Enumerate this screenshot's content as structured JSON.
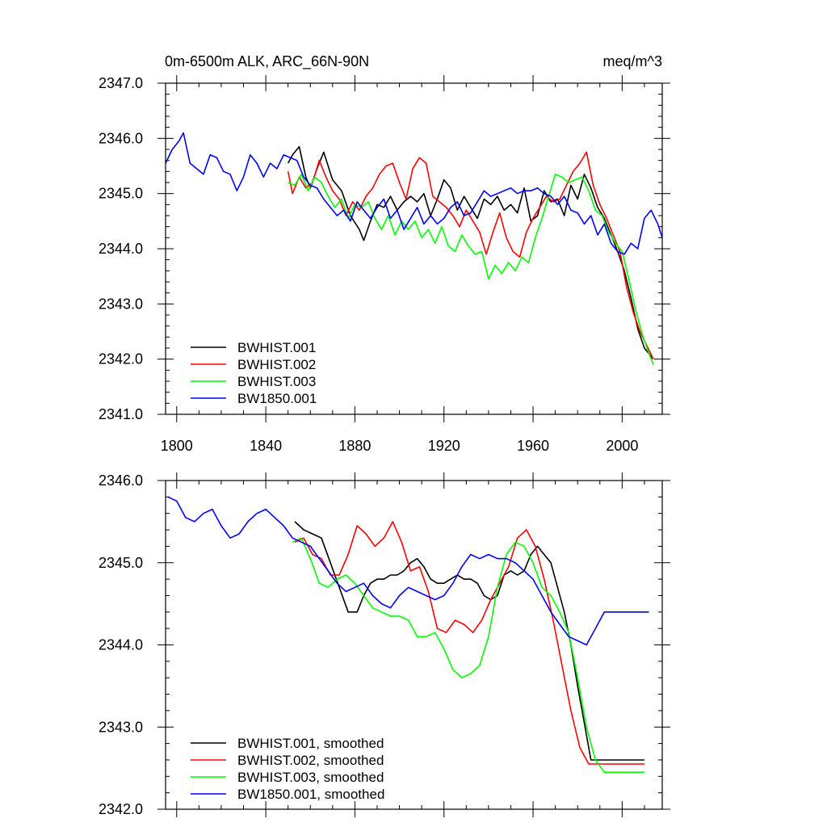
{
  "chart_data": [
    {
      "type": "line",
      "title": "0m-6500m ALK, ARC_66N-90N",
      "units": "meq/m^3",
      "xlim": [
        1795,
        2018
      ],
      "ylim": [
        2341.0,
        2347.0
      ],
      "x_ticks": [
        1800,
        1840,
        1880,
        1920,
        1960,
        2000
      ],
      "y_ticks": [
        "2341.0",
        "2342.0",
        "2343.0",
        "2344.0",
        "2345.0",
        "2346.0",
        "2347.0"
      ],
      "y_tick_values": [
        2341,
        2342,
        2343,
        2344,
        2345,
        2346,
        2347
      ],
      "legend_position": "bottom-left",
      "series": [
        {
          "name": "BWHIST.001",
          "color": "#000000",
          "x": [
            1850,
            1852,
            1855,
            1858,
            1860,
            1863,
            1866,
            1870,
            1874,
            1878,
            1882,
            1884,
            1887,
            1890,
            1893,
            1896,
            1899,
            1902,
            1905,
            1908,
            1911,
            1914,
            1917,
            1920,
            1923,
            1926,
            1929,
            1932,
            1935,
            1938,
            1941,
            1944,
            1947,
            1950,
            1953,
            1956,
            1959,
            1962,
            1965,
            1968,
            1971,
            1974,
            1977,
            1980,
            1983,
            1986,
            1989,
            1992,
            1995,
            1998,
            2001,
            2004,
            2007,
            2010,
            2014
          ],
          "y": [
            2345.55,
            2345.7,
            2345.85,
            2345.3,
            2345.1,
            2345.45,
            2345.75,
            2345.25,
            2345.05,
            2344.6,
            2344.35,
            2344.15,
            2344.5,
            2344.8,
            2344.75,
            2344.95,
            2344.7,
            2344.85,
            2344.95,
            2344.85,
            2345.0,
            2344.6,
            2344.9,
            2345.25,
            2345.1,
            2344.7,
            2344.95,
            2344.75,
            2344.55,
            2344.9,
            2344.8,
            2344.95,
            2344.7,
            2344.8,
            2344.65,
            2345.1,
            2344.5,
            2344.6,
            2345.05,
            2344.85,
            2344.9,
            2344.6,
            2345.15,
            2344.9,
            2345.35,
            2345.1,
            2344.75,
            2344.55,
            2344.25,
            2343.95,
            2343.6,
            2343.1,
            2342.55,
            2342.2,
            2342.0
          ]
        },
        {
          "name": "BWHIST.002",
          "color": "#ff0000",
          "x": [
            1850,
            1852,
            1855,
            1858,
            1861,
            1864,
            1867,
            1870,
            1873,
            1876,
            1879,
            1882,
            1885,
            1888,
            1891,
            1894,
            1897,
            1900,
            1903,
            1906,
            1909,
            1912,
            1915,
            1918,
            1921,
            1924,
            1927,
            1930,
            1933,
            1936,
            1939,
            1942,
            1945,
            1948,
            1951,
            1954,
            1957,
            1960,
            1963,
            1966,
            1969,
            1972,
            1975,
            1978,
            1981,
            1984,
            1987,
            1990,
            1993,
            1996,
            1999,
            2002,
            2005,
            2008,
            2011,
            2014
          ],
          "y": [
            2345.4,
            2345.0,
            2345.3,
            2345.1,
            2345.2,
            2345.6,
            2345.3,
            2345.05,
            2344.9,
            2344.6,
            2344.85,
            2344.7,
            2344.95,
            2345.1,
            2345.35,
            2345.5,
            2345.55,
            2345.2,
            2344.9,
            2345.45,
            2345.65,
            2345.55,
            2344.95,
            2344.85,
            2344.75,
            2344.6,
            2344.4,
            2344.7,
            2344.5,
            2344.3,
            2343.9,
            2344.3,
            2344.65,
            2344.2,
            2343.95,
            2343.85,
            2344.3,
            2344.55,
            2344.75,
            2344.95,
            2344.85,
            2344.9,
            2345.15,
            2345.4,
            2345.55,
            2345.75,
            2345.15,
            2344.8,
            2344.55,
            2344.25,
            2343.95,
            2343.3,
            2342.85,
            2342.5,
            2342.25,
            2342.0
          ]
        },
        {
          "name": "BWHIST.003",
          "color": "#00ff00",
          "x": [
            1850,
            1853,
            1856,
            1859,
            1862,
            1865,
            1868,
            1871,
            1874,
            1877,
            1880,
            1883,
            1886,
            1889,
            1892,
            1895,
            1898,
            1901,
            1904,
            1907,
            1910,
            1913,
            1916,
            1919,
            1922,
            1925,
            1928,
            1931,
            1934,
            1937,
            1940,
            1943,
            1946,
            1949,
            1952,
            1955,
            1958,
            1961,
            1964,
            1967,
            1970,
            1973,
            1976,
            1979,
            1982,
            1985,
            1988,
            1991,
            1994,
            1997,
            2000,
            2003,
            2006,
            2009,
            2012,
            2014
          ],
          "y": [
            2345.2,
            2345.15,
            2345.35,
            2345.05,
            2345.3,
            2345.2,
            2344.95,
            2344.75,
            2344.9,
            2344.55,
            2344.8,
            2344.75,
            2344.85,
            2344.55,
            2344.35,
            2344.6,
            2344.25,
            2344.5,
            2344.35,
            2344.5,
            2344.2,
            2344.35,
            2344.1,
            2344.4,
            2344.05,
            2343.95,
            2344.25,
            2344.05,
            2343.9,
            2343.95,
            2343.45,
            2343.7,
            2343.55,
            2343.75,
            2343.6,
            2343.85,
            2343.75,
            2344.2,
            2344.55,
            2344.95,
            2345.35,
            2345.3,
            2345.2,
            2345.25,
            2345.3,
            2345.05,
            2344.7,
            2344.6,
            2344.3,
            2344.1,
            2343.95,
            2343.45,
            2342.9,
            2342.45,
            2342.1,
            2341.9
          ]
        },
        {
          "name": "BW1850.001",
          "color": "#0000ff",
          "x": [
            1795,
            1798,
            1801,
            1803,
            1806,
            1809,
            1812,
            1815,
            1818,
            1821,
            1824,
            1827,
            1830,
            1833,
            1836,
            1839,
            1842,
            1845,
            1848,
            1851,
            1854,
            1857,
            1860,
            1863,
            1866,
            1869,
            1872,
            1875,
            1878,
            1881,
            1884,
            1887,
            1890,
            1893,
            1896,
            1899,
            1902,
            1905,
            1908,
            1911,
            1914,
            1917,
            1920,
            1923,
            1926,
            1929,
            1932,
            1935,
            1938,
            1941,
            1944,
            1947,
            1950,
            1953,
            1956,
            1959,
            1962,
            1965,
            1968,
            1971,
            1974,
            1977,
            1980,
            1983,
            1986,
            1989,
            1992,
            1995,
            1998,
            2001,
            2004,
            2007,
            2010,
            2013,
            2016,
            2018
          ],
          "y": [
            2345.55,
            2345.8,
            2345.95,
            2346.1,
            2345.55,
            2345.45,
            2345.35,
            2345.7,
            2345.65,
            2345.4,
            2345.35,
            2345.05,
            2345.3,
            2345.7,
            2345.55,
            2345.3,
            2345.55,
            2345.45,
            2345.7,
            2345.65,
            2345.6,
            2345.3,
            2345.15,
            2345.1,
            2344.9,
            2344.75,
            2344.6,
            2344.7,
            2344.5,
            2344.85,
            2344.7,
            2344.55,
            2344.75,
            2344.9,
            2344.55,
            2344.7,
            2344.35,
            2344.55,
            2344.75,
            2344.45,
            2344.6,
            2344.45,
            2344.55,
            2344.75,
            2344.85,
            2344.6,
            2344.65,
            2344.85,
            2345.05,
            2344.95,
            2345.0,
            2345.05,
            2345.1,
            2345.0,
            2345.05,
            2345.05,
            2345.1,
            2345.0,
            2344.95,
            2344.8,
            2344.95,
            2344.7,
            2344.65,
            2344.45,
            2344.6,
            2344.25,
            2344.45,
            2344.1,
            2343.95,
            2343.9,
            2344.1,
            2344.0,
            2344.55,
            2344.7,
            2344.45,
            2344.2
          ]
        }
      ]
    },
    {
      "type": "line",
      "title": "",
      "xlim": [
        1795,
        2018
      ],
      "ylim": [
        2342.0,
        2346.0
      ],
      "x_ticks": [
        1800,
        1840,
        1880,
        1920,
        1960,
        2000
      ],
      "y_ticks": [
        "2342.0",
        "2343.0",
        "2344.0",
        "2345.0",
        "2346.0"
      ],
      "y_tick_values": [
        2342,
        2343,
        2344,
        2345,
        2346
      ],
      "legend_position": "bottom-left",
      "series": [
        {
          "name": "BWHIST.001, smoothed",
          "color": "#000000",
          "x": [
            1853,
            1857,
            1861,
            1865,
            1869,
            1873,
            1877,
            1881,
            1884,
            1887,
            1890,
            1893,
            1896,
            1899,
            1902,
            1905,
            1908,
            1911,
            1914,
            1917,
            1920,
            1923,
            1926,
            1929,
            1932,
            1935,
            1938,
            1941,
            1944,
            1947,
            1950,
            1953,
            1956,
            1959,
            1962,
            1965,
            1968,
            1971,
            1974,
            1977,
            1980,
            1983,
            1986,
            1989,
            1992,
            1995,
            1998,
            2001,
            2004,
            2007,
            2010
          ],
          "y": [
            2345.5,
            2345.4,
            2345.35,
            2345.3,
            2345.0,
            2344.7,
            2344.4,
            2344.4,
            2344.6,
            2344.75,
            2344.8,
            2344.8,
            2344.85,
            2344.85,
            2344.9,
            2345.0,
            2345.05,
            2344.95,
            2344.8,
            2344.75,
            2344.75,
            2344.8,
            2344.85,
            2344.8,
            2344.8,
            2344.75,
            2344.6,
            2344.55,
            2344.6,
            2344.85,
            2344.9,
            2344.85,
            2344.9,
            2345.1,
            2345.2,
            2345.1,
            2345.0,
            2344.7,
            2344.4,
            2344.0,
            2343.5,
            2343.05,
            2342.6,
            2342.6,
            2342.6,
            2342.6,
            2342.6,
            2342.6,
            2342.6,
            2342.6,
            2342.6
          ]
        },
        {
          "name": "BWHIST.002, smoothed",
          "color": "#ff0000",
          "x": [
            1853,
            1857,
            1861,
            1865,
            1869,
            1873,
            1877,
            1881,
            1885,
            1889,
            1893,
            1897,
            1901,
            1905,
            1909,
            1913,
            1917,
            1921,
            1925,
            1929,
            1933,
            1937,
            1941,
            1945,
            1949,
            1953,
            1957,
            1961,
            1965,
            1969,
            1973,
            1977,
            1981,
            1985,
            1989,
            1993,
            1997,
            2001,
            2005,
            2010
          ],
          "y": [
            2345.25,
            2345.3,
            2345.1,
            2345.05,
            2344.85,
            2344.85,
            2345.1,
            2345.45,
            2345.35,
            2345.2,
            2345.3,
            2345.5,
            2345.25,
            2344.9,
            2344.95,
            2344.65,
            2344.2,
            2344.15,
            2344.3,
            2344.25,
            2344.15,
            2344.3,
            2344.55,
            2344.75,
            2344.95,
            2345.3,
            2345.4,
            2345.2,
            2344.8,
            2344.3,
            2343.75,
            2343.2,
            2342.75,
            2342.55,
            2342.55,
            2342.55,
            2342.55,
            2342.55,
            2342.55,
            2342.55
          ]
        },
        {
          "name": "BWHIST.003, smoothed",
          "color": "#00ff00",
          "x": [
            1852,
            1856,
            1860,
            1864,
            1868,
            1872,
            1876,
            1880,
            1884,
            1888,
            1892,
            1896,
            1900,
            1904,
            1908,
            1912,
            1916,
            1920,
            1924,
            1928,
            1932,
            1936,
            1940,
            1944,
            1948,
            1952,
            1956,
            1960,
            1964,
            1968,
            1972,
            1976,
            1980,
            1984,
            1988,
            1992,
            1996,
            2000,
            2004,
            2008,
            2010
          ],
          "y": [
            2345.25,
            2345.3,
            2345.05,
            2344.75,
            2344.7,
            2344.8,
            2344.85,
            2344.75,
            2344.6,
            2344.45,
            2344.4,
            2344.35,
            2344.35,
            2344.3,
            2344.1,
            2344.1,
            2344.15,
            2343.95,
            2343.7,
            2343.6,
            2343.65,
            2343.75,
            2344.1,
            2344.7,
            2345.1,
            2345.25,
            2345.2,
            2345.0,
            2344.7,
            2344.6,
            2344.4,
            2344.15,
            2343.6,
            2343.0,
            2342.6,
            2342.45,
            2342.45,
            2342.45,
            2342.45,
            2342.45,
            2342.45
          ]
        },
        {
          "name": "BW1850.001, smoothed",
          "color": "#0000ff",
          "x": [
            1796,
            1800,
            1804,
            1808,
            1812,
            1816,
            1820,
            1824,
            1828,
            1832,
            1836,
            1840,
            1844,
            1848,
            1852,
            1856,
            1860,
            1864,
            1868,
            1872,
            1876,
            1880,
            1884,
            1888,
            1892,
            1896,
            1900,
            1904,
            1908,
            1912,
            1916,
            1920,
            1924,
            1928,
            1932,
            1936,
            1940,
            1944,
            1948,
            1952,
            1956,
            1960,
            1964,
            1968,
            1972,
            1976,
            1980,
            1984,
            1988,
            1992,
            1996,
            2000,
            2004,
            2008,
            2012
          ],
          "y": [
            2345.8,
            2345.75,
            2345.55,
            2345.5,
            2345.6,
            2345.65,
            2345.45,
            2345.3,
            2345.35,
            2345.5,
            2345.6,
            2345.65,
            2345.55,
            2345.45,
            2345.3,
            2345.25,
            2345.2,
            2345.05,
            2344.9,
            2344.75,
            2344.65,
            2344.7,
            2344.75,
            2344.6,
            2344.5,
            2344.45,
            2344.6,
            2344.7,
            2344.65,
            2344.6,
            2344.55,
            2344.6,
            2344.75,
            2344.95,
            2345.1,
            2345.05,
            2345.1,
            2345.05,
            2345.05,
            2345.0,
            2344.9,
            2344.8,
            2344.6,
            2344.4,
            2344.25,
            2344.1,
            2344.05,
            2344.0,
            2344.2,
            2344.4,
            2344.4,
            2344.4,
            2344.4,
            2344.4,
            2344.4
          ]
        }
      ]
    }
  ]
}
